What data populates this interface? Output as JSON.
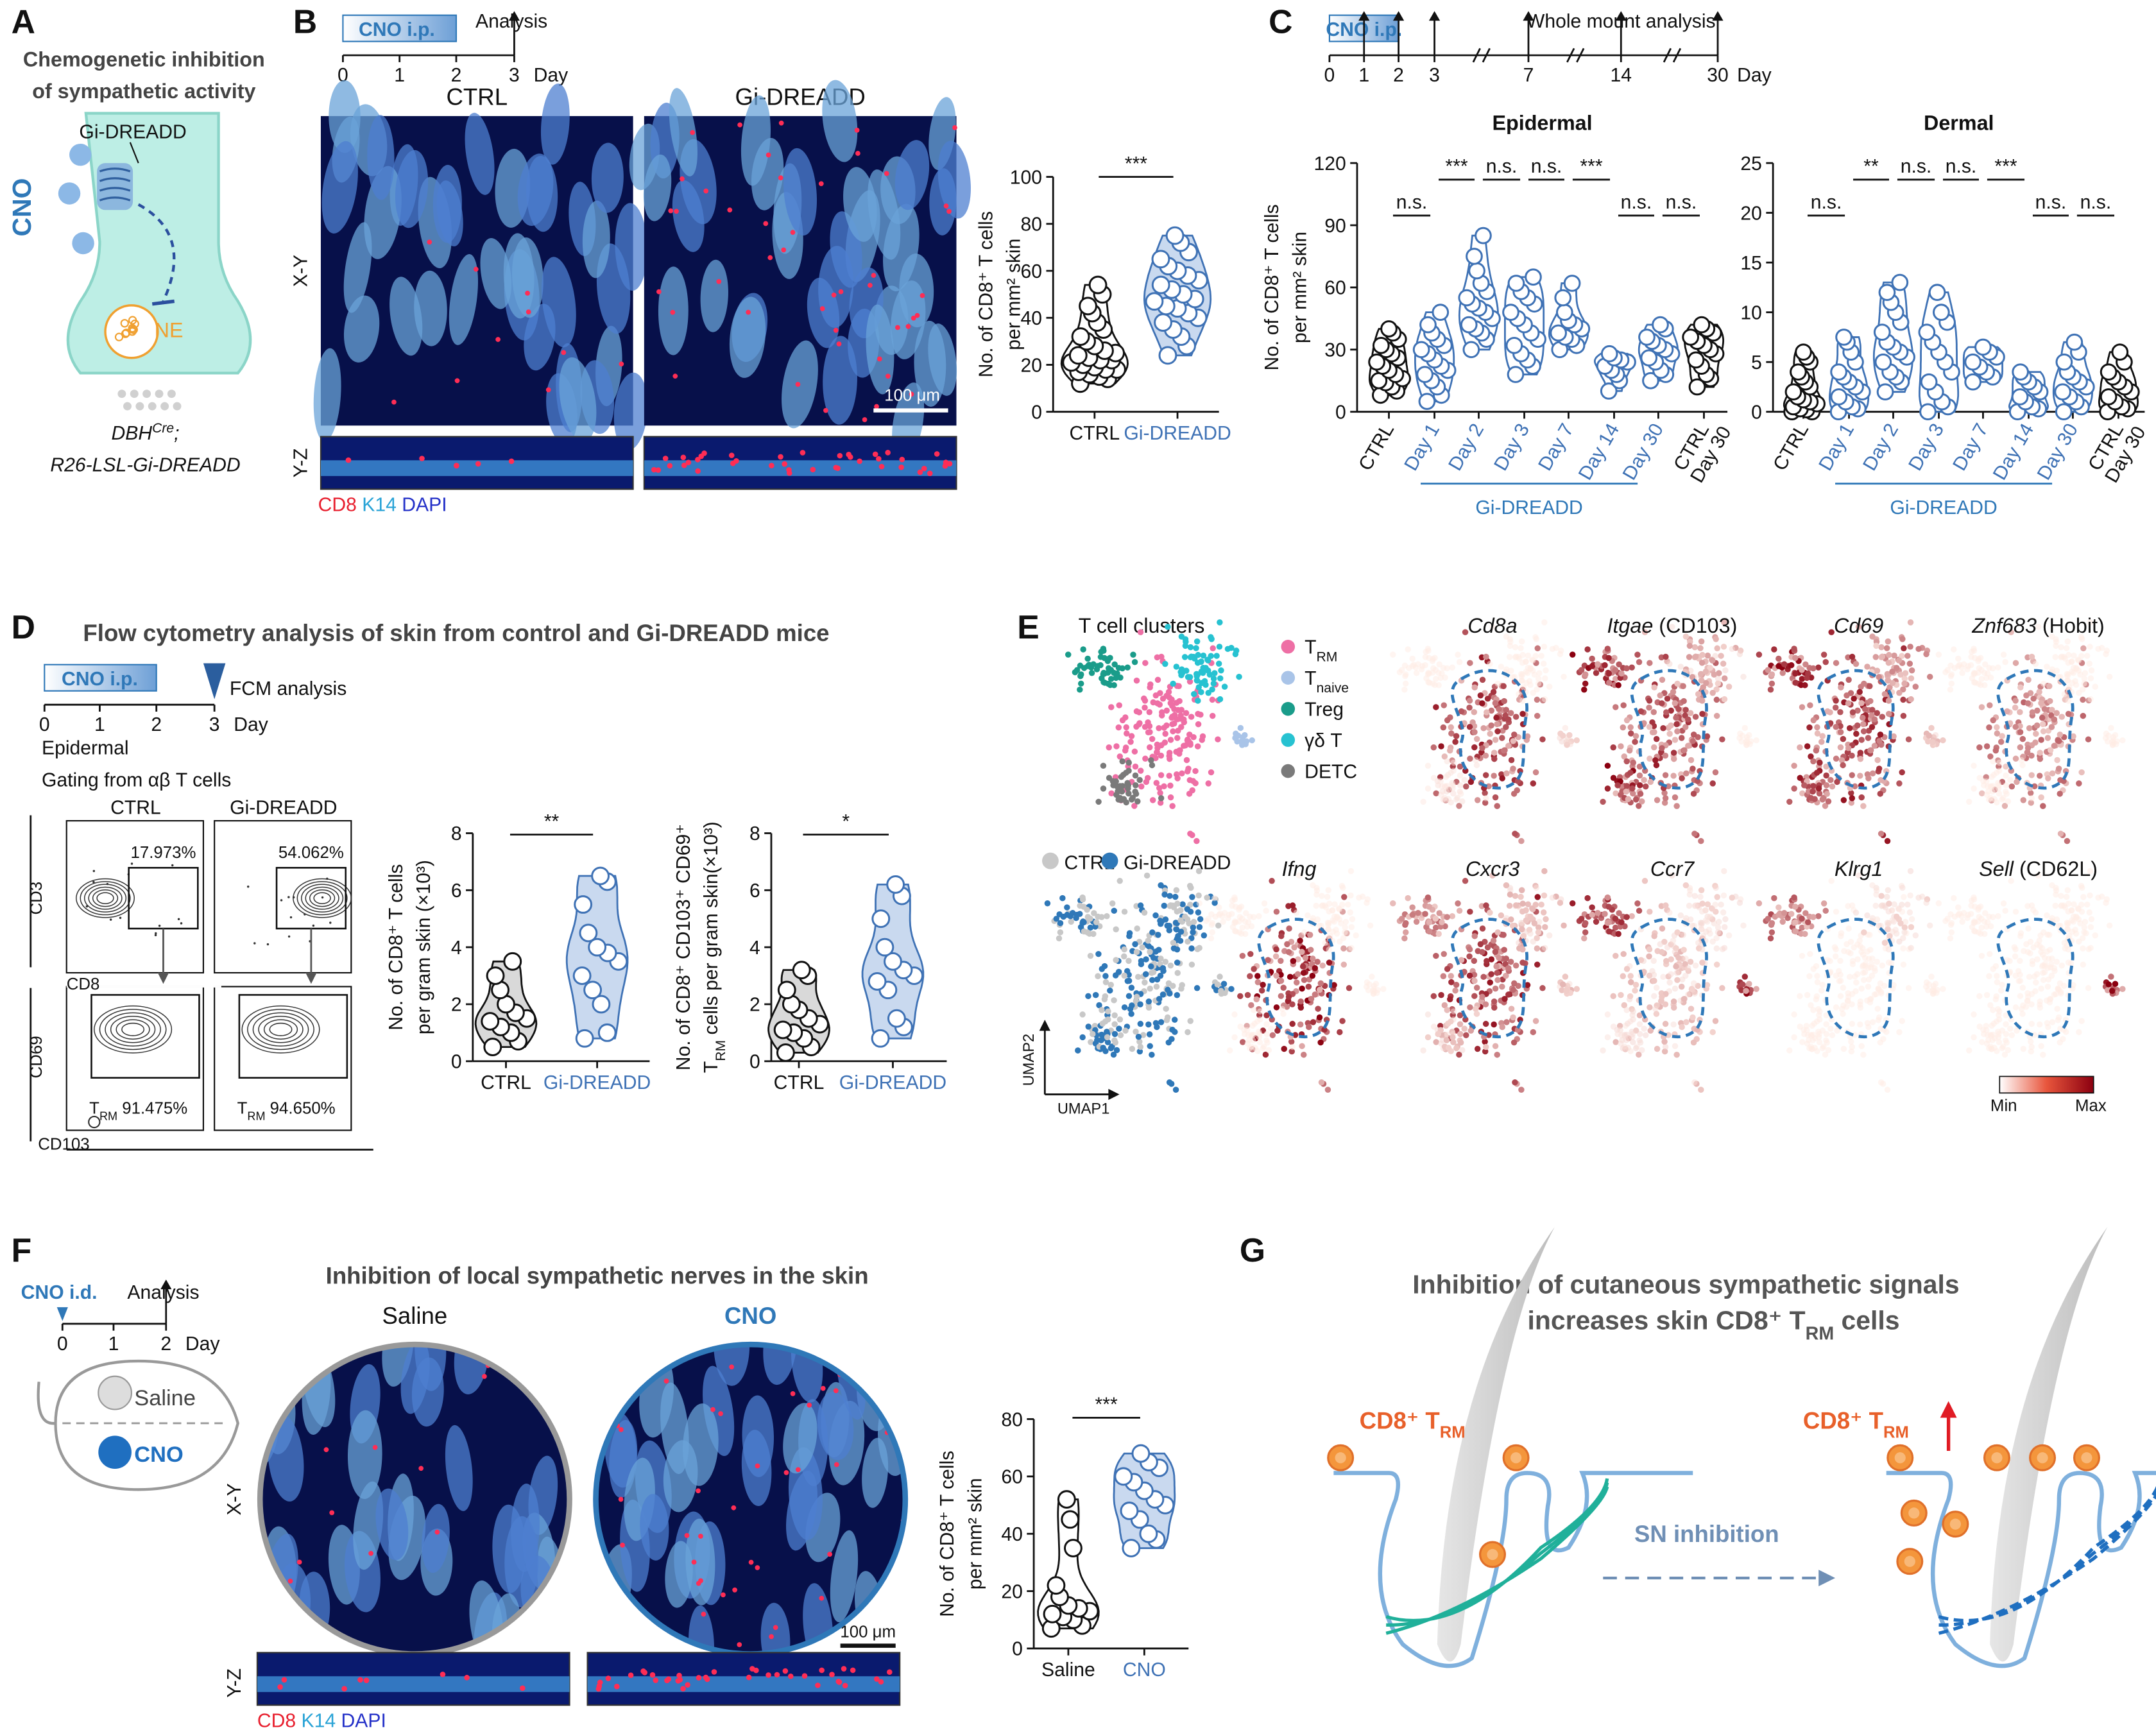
{
  "panel_a": {
    "letter": "A",
    "title": [
      "Chemogenetic inhibition",
      "of sympathetic activity"
    ],
    "receptor": "Gi-DREADD",
    "drug": "CNO",
    "transmitter": "NE",
    "genotype": [
      [
        "DBH",
        "Cre",
        ";"
      ],
      [
        "R26-LSL-Gi-DREADD"
      ]
    ]
  },
  "panel_b": {
    "letter": "B",
    "timeline": {
      "treatment": "CNO i.p.",
      "event": "Analysis",
      "ticks": [
        0,
        1,
        2,
        3
      ],
      "unit": "Day"
    },
    "groups": [
      "CTRL",
      "Gi-DREADD"
    ],
    "views": [
      "X-Y",
      "Y-Z"
    ],
    "stains": [
      "CD8",
      " K14",
      " DAPI"
    ],
    "stain_colors": [
      "#e8202f",
      "#29a3d6",
      "#2431c8"
    ],
    "scale_bar": "100 μm",
    "chart": {
      "y_label": [
        [
          "No. of CD8⁺ T cells"
        ],
        [
          "per mm² skin"
        ]
      ],
      "ylim": [
        0,
        100
      ],
      "yticks": [
        0,
        20,
        40,
        60,
        80,
        100
      ],
      "categories": [
        "CTRL",
        "Gi-DREADD"
      ],
      "colors": [
        "#111111",
        "#3f72b5"
      ],
      "fills": [
        "#ffffff",
        "#c9d9ef"
      ],
      "values": [
        [
          12,
          14,
          15,
          16,
          17,
          18,
          18,
          19,
          20,
          21,
          22,
          22,
          23,
          24,
          25,
          26,
          28,
          30,
          32,
          35,
          38,
          42,
          45,
          50,
          54
        ],
        [
          24,
          28,
          32,
          35,
          38,
          40,
          42,
          44,
          45,
          47,
          48,
          50,
          52,
          54,
          56,
          58,
          60,
          62,
          65,
          68,
          72,
          75
        ]
      ],
      "significance": [
        "***"
      ]
    }
  },
  "panel_c": {
    "letter": "C",
    "timeline": {
      "treatment": "CNO i.p.",
      "event": "Whole mount analysis",
      "ticks": [
        0,
        1,
        2,
        3,
        7,
        14,
        30
      ],
      "unit": "Day"
    },
    "charts": [
      {
        "title": "Epidermal",
        "y_label": [
          [
            "No. of CD8⁺ T cells"
          ],
          [
            "per mm² skin"
          ]
        ],
        "ylim": [
          0,
          120
        ],
        "yticks": [
          0,
          30,
          60,
          90,
          120
        ],
        "categories": [
          "CTRL",
          "Day 1",
          "Day 2",
          "Day 3",
          "Day 7",
          "Day 14",
          "Day 30",
          [
            "CTRL",
            "Day 30"
          ]
        ],
        "colors": [
          "#111111",
          "#3f72b5",
          "#3f72b5",
          "#3f72b5",
          "#3f72b5",
          "#3f72b5",
          "#3f72b5",
          "#111111"
        ],
        "fills": [
          "none",
          "none",
          "none",
          "none",
          "none",
          "none",
          "none",
          "none"
        ],
        "values": [
          [
            8,
            10,
            12,
            14,
            15,
            16,
            18,
            20,
            22,
            24,
            26,
            28,
            30,
            32,
            35,
            38,
            40
          ],
          [
            5,
            8,
            12,
            15,
            18,
            20,
            22,
            25,
            28,
            30,
            32,
            35,
            38,
            42,
            48
          ],
          [
            30,
            35,
            38,
            40,
            42,
            45,
            48,
            50,
            52,
            55,
            58,
            62,
            68,
            75,
            85
          ],
          [
            18,
            22,
            25,
            28,
            32,
            35,
            38,
            42,
            45,
            48,
            52,
            55,
            58,
            62,
            65
          ],
          [
            30,
            32,
            35,
            36,
            38,
            40,
            42,
            44,
            48,
            55,
            62
          ],
          [
            10,
            15,
            18,
            20,
            22,
            24,
            25,
            26,
            28
          ],
          [
            15,
            18,
            20,
            24,
            26,
            28,
            30,
            32,
            34,
            36,
            40,
            42
          ],
          [
            12,
            16,
            18,
            22,
            25,
            28,
            30,
            32,
            34,
            36,
            38,
            40,
            42
          ]
        ],
        "significance": [
          "n.s.",
          "***",
          "n.s.",
          "n.s.",
          "***",
          "n.s.",
          "n.s."
        ],
        "group_label": "Gi-DREADD"
      },
      {
        "title": "Dermal",
        "ylim": [
          0,
          25
        ],
        "yticks": [
          0,
          5,
          10,
          15,
          20,
          25
        ],
        "categories": [
          "CTRL",
          "Day 1",
          "Day 2",
          "Day 3",
          "Day 7",
          "Day 14",
          "Day 30",
          [
            "CTRL",
            "Day 30"
          ]
        ],
        "colors": [
          "#111111",
          "#3f72b5",
          "#3f72b5",
          "#3f72b5",
          "#3f72b5",
          "#3f72b5",
          "#3f72b5",
          "#111111"
        ],
        "fills": [
          "none",
          "none",
          "none",
          "none",
          "none",
          "none",
          "none",
          "none"
        ],
        "values": [
          [
            0,
            0,
            0.2,
            0.3,
            0.5,
            0.8,
            1,
            1.2,
            1.5,
            2,
            2.5,
            3,
            3.5,
            4,
            5,
            5.5,
            6
          ],
          [
            0,
            0.3,
            0.5,
            1,
            1.5,
            2,
            2.5,
            3,
            3.5,
            4,
            5,
            6,
            7,
            7.5
          ],
          [
            2,
            3,
            3.5,
            4,
            5,
            5.5,
            6,
            6.5,
            7,
            8,
            9,
            10,
            11,
            12,
            13
          ],
          [
            0,
            0.5,
            1,
            2,
            3,
            4,
            5,
            6,
            7,
            8,
            9,
            10,
            12
          ],
          [
            3,
            3.5,
            4,
            4.5,
            5,
            5.5,
            6,
            6.5
          ],
          [
            0,
            0.3,
            0.5,
            1,
            1.5,
            2,
            2.5,
            3,
            3.5,
            4
          ],
          [
            0,
            0.5,
            1,
            1.5,
            2,
            2.5,
            3,
            3.5,
            4,
            5,
            6,
            7
          ],
          [
            0,
            0.3,
            0.5,
            1,
            1.5,
            2,
            2.5,
            3,
            3.5,
            4,
            5,
            6
          ]
        ],
        "significance": [
          "n.s.",
          "**",
          "n.s.",
          "n.s.",
          "***",
          "n.s.",
          "n.s."
        ],
        "group_label": "Gi-DREADD"
      }
    ]
  },
  "panel_d": {
    "letter": "D",
    "title": "Flow cytometry analysis of skin from control and Gi-DREADD mice",
    "timeline": {
      "treatment": "CNO i.p.",
      "event": "FCM analysis",
      "ticks": [
        0,
        1,
        2,
        3
      ],
      "unit": "Day"
    },
    "tissue": "Epidermal",
    "gating": "Gating from αβ T cells",
    "groups": [
      "CTRL",
      "Gi-DREADD"
    ],
    "axes": [
      "CD3",
      "CD8",
      "CD69",
      "CD103"
    ],
    "gate_percent": [
      "17.973%",
      "54.062%"
    ],
    "trm_percent": [
      [
        "T",
        "RM",
        " 91.475%"
      ],
      [
        "T",
        "RM",
        " 94.650%"
      ]
    ],
    "charts": [
      {
        "y_label": [
          [
            "No. of CD8⁺ T cells"
          ],
          [
            "per gram skin (×10³)"
          ]
        ],
        "ylim": [
          0,
          8
        ],
        "yticks": [
          0,
          2,
          4,
          6,
          8
        ],
        "categories": [
          "CTRL",
          "Gi-DREADD"
        ],
        "colors": [
          "#111111",
          "#3f72b5"
        ],
        "fills": [
          "#d9d9d9",
          "#c9d9ef"
        ],
        "values": [
          [
            0.5,
            0.7,
            1,
            1.2,
            1.4,
            1.5,
            1.7,
            2,
            2.5,
            3,
            3.5
          ],
          [
            0.8,
            1,
            2,
            2.5,
            3,
            3.5,
            3.8,
            4,
            4.5,
            5.5,
            6.3,
            6.5
          ]
        ],
        "significance": [
          "**"
        ]
      },
      {
        "y_label": [
          [
            "No. of CD8⁺ CD103⁺ CD69⁺"
          ],
          [
            "T",
            "RM",
            " cells per gram skin(×10³)"
          ]
        ],
        "ylim": [
          0,
          8
        ],
        "yticks": [
          0,
          2,
          4,
          6,
          8
        ],
        "categories": [
          "CTRL",
          "Gi-DREADD"
        ],
        "colors": [
          "#111111",
          "#3f72b5"
        ],
        "fills": [
          "#d9d9d9",
          "#c9d9ef"
        ],
        "values": [
          [
            0.3,
            0.5,
            0.8,
            1,
            1.1,
            1.3,
            1.5,
            1.8,
            2,
            2.5,
            3,
            3.2
          ],
          [
            0.8,
            1.2,
            1.5,
            2.5,
            2.8,
            3,
            3.2,
            3.5,
            4,
            5,
            5.8,
            6.2
          ]
        ],
        "significance": [
          "*"
        ]
      }
    ]
  },
  "panel_e": {
    "letter": "E",
    "cluster_title": "T cell clusters",
    "clusters": [
      [
        "T",
        "RM"
      ],
      [
        "T",
        "naive"
      ],
      [
        "Treg"
      ],
      [
        "γδ T"
      ],
      [
        "DETC"
      ]
    ],
    "cluster_colors": [
      "#ee6fa5",
      "#a9c4e8",
      "#1a9c8a",
      "#27c2d1",
      "#7a7a7a"
    ],
    "conditions": [
      "CTRL",
      "Gi-DREADD"
    ],
    "condition_colors": [
      "#c8c8c8",
      "#2f78b8"
    ],
    "genes": [
      [
        "Cd8a"
      ],
      [
        "Itgae",
        " (CD103)"
      ],
      [
        "Cd69"
      ],
      [
        "Znf683",
        " (Hobit)"
      ],
      [
        "Ifng"
      ],
      [
        "Cxcr3"
      ],
      [
        "Ccr7"
      ],
      [
        "Klrg1"
      ],
      [
        "Sell",
        " (CD62L)"
      ]
    ],
    "axes": [
      "UMAP1",
      "UMAP2"
    ],
    "scale": [
      "Min",
      "Max"
    ]
  },
  "panel_f": {
    "letter": "F",
    "timeline": {
      "treatment": "CNO i.d.",
      "event": "Analysis",
      "ticks": [
        0,
        1,
        2
      ],
      "unit": "Day"
    },
    "sites": [
      "Saline",
      "CNO"
    ],
    "title": "Inhibition of local sympathetic nerves in the skin",
    "groups": [
      "Saline",
      "CNO"
    ],
    "views": [
      "X-Y",
      "Y-Z"
    ],
    "stains": [
      "CD8",
      " K14",
      " DAPI"
    ],
    "stain_colors": [
      "#e8202f",
      "#29a3d6",
      "#2431c8"
    ],
    "scale_bar": "100 μm",
    "chart": {
      "y_label": [
        [
          "No. of CD8⁺ T cells"
        ],
        [
          "per mm² skin"
        ]
      ],
      "ylim": [
        0,
        80
      ],
      "yticks": [
        0,
        20,
        40,
        60,
        80
      ],
      "categories": [
        "Saline",
        "CNO"
      ],
      "colors": [
        "#111111",
        "#3f72b5"
      ],
      "fills": [
        "#ffffff",
        "#c9d9ef"
      ],
      "values": [
        [
          7,
          8,
          10,
          11,
          12,
          13,
          14,
          15,
          18,
          22,
          35,
          45,
          52
        ],
        [
          35,
          38,
          40,
          45,
          48,
          50,
          52,
          55,
          58,
          60,
          63,
          65,
          68
        ]
      ],
      "significance": [
        "***"
      ]
    }
  },
  "panel_g": {
    "letter": "G",
    "title": [
      [
        "Inhibition of cutaneous sympathetic signals"
      ],
      [
        "increases skin CD8⁺ T",
        "RM",
        " cells"
      ]
    ],
    "cell": [
      "CD8⁺ T",
      "RM"
    ],
    "process": "SN inhibition"
  }
}
